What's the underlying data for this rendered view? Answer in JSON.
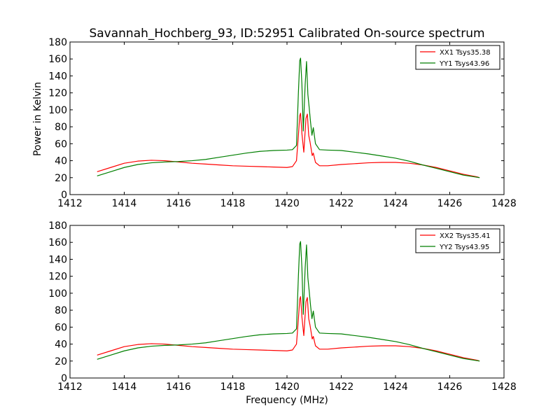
{
  "figure": {
    "title": "Savannah_Hochberg_93, ID:52951 Calibrated On-source spectrum",
    "ylabel": "Power in Kelvin",
    "xlabel": "Frequency (MHz)"
  },
  "colors": {
    "xx": "#ff0000",
    "yy": "#007f00",
    "axes": "#000000",
    "background": "#ffffff"
  },
  "chart_data": [
    {
      "type": "line",
      "title": "Savannah_Hochberg_93, ID:52951 Calibrated On-source spectrum",
      "xlabel": "",
      "ylabel": "Power in Kelvin",
      "xlim": [
        1412,
        1428
      ],
      "ylim": [
        0,
        180
      ],
      "xticks": [
        1412,
        1414,
        1416,
        1418,
        1420,
        1422,
        1424,
        1426,
        1428
      ],
      "yticks": [
        0,
        20,
        40,
        60,
        80,
        100,
        120,
        140,
        160,
        180
      ],
      "grid": false,
      "legend": "top-right",
      "series": [
        {
          "name": "XX1 Tsys35.38",
          "color": "#ff0000",
          "x": [
            1413.0,
            1413.5,
            1414.0,
            1414.5,
            1415.0,
            1415.5,
            1416.0,
            1416.5,
            1417.0,
            1417.5,
            1418.0,
            1418.5,
            1419.0,
            1419.5,
            1420.0,
            1420.2,
            1420.35,
            1420.42,
            1420.47,
            1420.5,
            1420.55,
            1420.62,
            1420.7,
            1420.75,
            1420.8,
            1420.85,
            1420.88,
            1420.93,
            1420.97,
            1421.05,
            1421.2,
            1421.5,
            1422.0,
            1422.5,
            1423.0,
            1423.5,
            1424.0,
            1424.5,
            1425.0,
            1425.5,
            1426.0,
            1426.5,
            1427.0,
            1427.1
          ],
          "y": [
            27,
            32,
            37,
            39.5,
            40.5,
            40,
            38.5,
            37,
            36,
            35,
            34,
            33.5,
            33,
            32.5,
            32,
            33,
            40,
            70,
            93,
            96,
            72,
            50,
            90,
            95,
            70,
            62,
            56,
            46,
            49,
            38,
            34,
            34,
            35.5,
            36.5,
            37.5,
            38,
            38,
            37,
            35,
            32,
            28,
            24,
            21,
            20
          ]
        },
        {
          "name": "YY1 Tsys43.96",
          "color": "#007f00",
          "x": [
            1413.0,
            1413.5,
            1414.0,
            1414.5,
            1415.0,
            1415.5,
            1416.0,
            1416.5,
            1417.0,
            1417.5,
            1418.0,
            1418.5,
            1419.0,
            1419.5,
            1420.0,
            1420.2,
            1420.35,
            1420.42,
            1420.47,
            1420.5,
            1420.55,
            1420.6,
            1420.67,
            1420.72,
            1420.77,
            1420.82,
            1420.87,
            1420.92,
            1420.97,
            1421.05,
            1421.2,
            1421.5,
            1422.0,
            1422.5,
            1423.0,
            1423.5,
            1424.0,
            1424.5,
            1425.0,
            1425.5,
            1426.0,
            1426.5,
            1427.0,
            1427.1
          ],
          "y": [
            22,
            27,
            32,
            35.5,
            37.5,
            38.5,
            39,
            40,
            41.5,
            44,
            46.5,
            49,
            51,
            52,
            52.5,
            53,
            58,
            120,
            158,
            161,
            130,
            75,
            130,
            157,
            118,
            102,
            85,
            70,
            79,
            60,
            53,
            52.5,
            52,
            50,
            48,
            45.5,
            43,
            39.5,
            35,
            31,
            27,
            23,
            20.5,
            20
          ]
        }
      ]
    },
    {
      "type": "line",
      "title": "",
      "xlabel": "Frequency (MHz)",
      "ylabel": "",
      "xlim": [
        1412,
        1428
      ],
      "ylim": [
        0,
        180
      ],
      "xticks": [
        1412,
        1414,
        1416,
        1418,
        1420,
        1422,
        1424,
        1426,
        1428
      ],
      "yticks": [
        0,
        20,
        40,
        60,
        80,
        100,
        120,
        140,
        160,
        180
      ],
      "grid": false,
      "legend": "top-right",
      "series": [
        {
          "name": "XX2 Tsys35.41",
          "color": "#ff0000",
          "x": [
            1413.0,
            1413.5,
            1414.0,
            1414.5,
            1415.0,
            1415.5,
            1416.0,
            1416.5,
            1417.0,
            1417.5,
            1418.0,
            1418.5,
            1419.0,
            1419.5,
            1420.0,
            1420.2,
            1420.35,
            1420.42,
            1420.47,
            1420.5,
            1420.55,
            1420.62,
            1420.7,
            1420.75,
            1420.8,
            1420.85,
            1420.88,
            1420.93,
            1420.97,
            1421.05,
            1421.2,
            1421.5,
            1422.0,
            1422.5,
            1423.0,
            1423.5,
            1424.0,
            1424.5,
            1425.0,
            1425.5,
            1426.0,
            1426.5,
            1427.0,
            1427.1
          ],
          "y": [
            27,
            32,
            37,
            39.5,
            40.5,
            40,
            38.5,
            37,
            36,
            35,
            34,
            33.5,
            33,
            32.5,
            32,
            33,
            40,
            70,
            93,
            96,
            72,
            50,
            90,
            95,
            70,
            62,
            56,
            46,
            49,
            38,
            34,
            34,
            35.5,
            36.5,
            37.5,
            38,
            38,
            37,
            35,
            32,
            28,
            24,
            21,
            20
          ]
        },
        {
          "name": "YY2 Tsys43.95",
          "color": "#007f00",
          "x": [
            1413.0,
            1413.5,
            1414.0,
            1414.5,
            1415.0,
            1415.5,
            1416.0,
            1416.5,
            1417.0,
            1417.5,
            1418.0,
            1418.5,
            1419.0,
            1419.5,
            1420.0,
            1420.2,
            1420.35,
            1420.42,
            1420.47,
            1420.5,
            1420.55,
            1420.6,
            1420.67,
            1420.72,
            1420.77,
            1420.82,
            1420.87,
            1420.92,
            1420.97,
            1421.05,
            1421.2,
            1421.5,
            1422.0,
            1422.5,
            1423.0,
            1423.5,
            1424.0,
            1424.5,
            1425.0,
            1425.5,
            1426.0,
            1426.5,
            1427.0,
            1427.1
          ],
          "y": [
            22,
            27,
            32,
            35.5,
            37.5,
            38.5,
            39,
            40,
            41.5,
            44,
            46.5,
            49,
            51,
            52,
            52.5,
            53,
            58,
            120,
            158,
            161,
            130,
            75,
            130,
            157,
            118,
            102,
            85,
            70,
            79,
            60,
            53,
            52.5,
            52,
            50,
            48,
            45.5,
            43,
            39.5,
            35,
            31,
            27,
            23,
            20.5,
            20
          ]
        }
      ]
    }
  ]
}
